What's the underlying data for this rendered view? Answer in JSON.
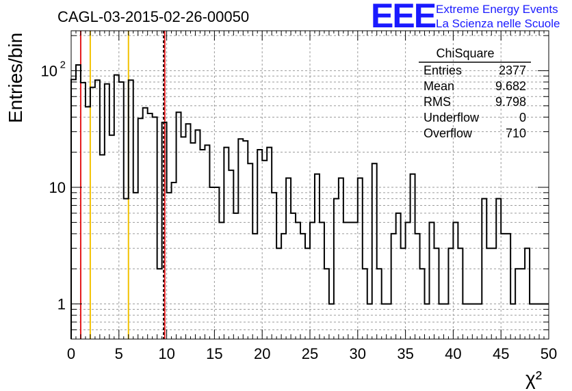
{
  "chart_data": {
    "type": "histogram",
    "title": "CAGL-03-2015-02-26-00050",
    "xlabel": "χ²",
    "ylabel": "Entries/bin",
    "xlim": [
      0,
      50
    ],
    "ylim": [
      0.5,
      220
    ],
    "yscale": "log",
    "grid": true,
    "bin_width": 0.5,
    "x_ticks": [
      "0",
      "5",
      "10",
      "15",
      "20",
      "25",
      "30",
      "35",
      "40",
      "45",
      "50"
    ],
    "y_ticks": [
      {
        "value": 1,
        "label": "1"
      },
      {
        "value": 10,
        "label": "10"
      },
      {
        "value": 100,
        "label": "10",
        "exp": "2"
      }
    ],
    "counts": [
      84,
      112,
      79,
      49,
      72,
      83,
      19,
      77,
      28,
      92,
      80,
      8,
      83,
      9,
      39,
      48,
      43,
      40,
      2,
      36,
      9,
      11,
      44,
      27,
      35,
      24,
      31,
      21,
      23,
      10,
      10,
      5,
      22,
      14,
      6,
      26,
      25,
      16,
      4,
      21,
      17,
      22,
      9,
      3,
      4,
      12,
      6,
      5,
      4,
      3,
      5,
      13,
      5,
      2,
      1,
      8,
      12,
      5,
      5,
      5,
      12,
      2,
      1,
      16,
      2,
      1,
      1,
      4,
      6,
      3,
      5,
      13,
      4,
      2,
      1,
      5,
      3,
      1,
      1,
      3,
      5,
      3,
      1,
      1,
      1,
      1,
      8,
      3,
      3,
      8,
      4,
      4,
      1,
      2,
      2,
      3,
      1,
      1,
      1,
      1
    ],
    "vertical_lines": [
      {
        "x": 1.0,
        "color": "#e31a1c",
        "style": "solid"
      },
      {
        "x": 2.0,
        "color": "#f2c200",
        "style": "solid"
      },
      {
        "x": 6.0,
        "color": "#f2c200",
        "style": "solid"
      },
      {
        "x": 9.682,
        "color": "#000000",
        "style": "dashed"
      },
      {
        "x": 9.798,
        "color": "#e31a1c",
        "style": "solid"
      }
    ],
    "stats_box": {
      "title": "ChiSquare",
      "rows": [
        {
          "key": "Entries",
          "value": "2377"
        },
        {
          "key": "Mean",
          "value": "9.682"
        },
        {
          "key": "RMS",
          "value": "9.798"
        },
        {
          "key": "Underflow",
          "value": "0"
        },
        {
          "key": "Overflow",
          "value": "710"
        }
      ]
    }
  },
  "logo": {
    "mark": "EEE",
    "line1": "Extreme Energy Events",
    "line2": "La Scienza nelle Scuole",
    "color": "#1a1aff"
  }
}
